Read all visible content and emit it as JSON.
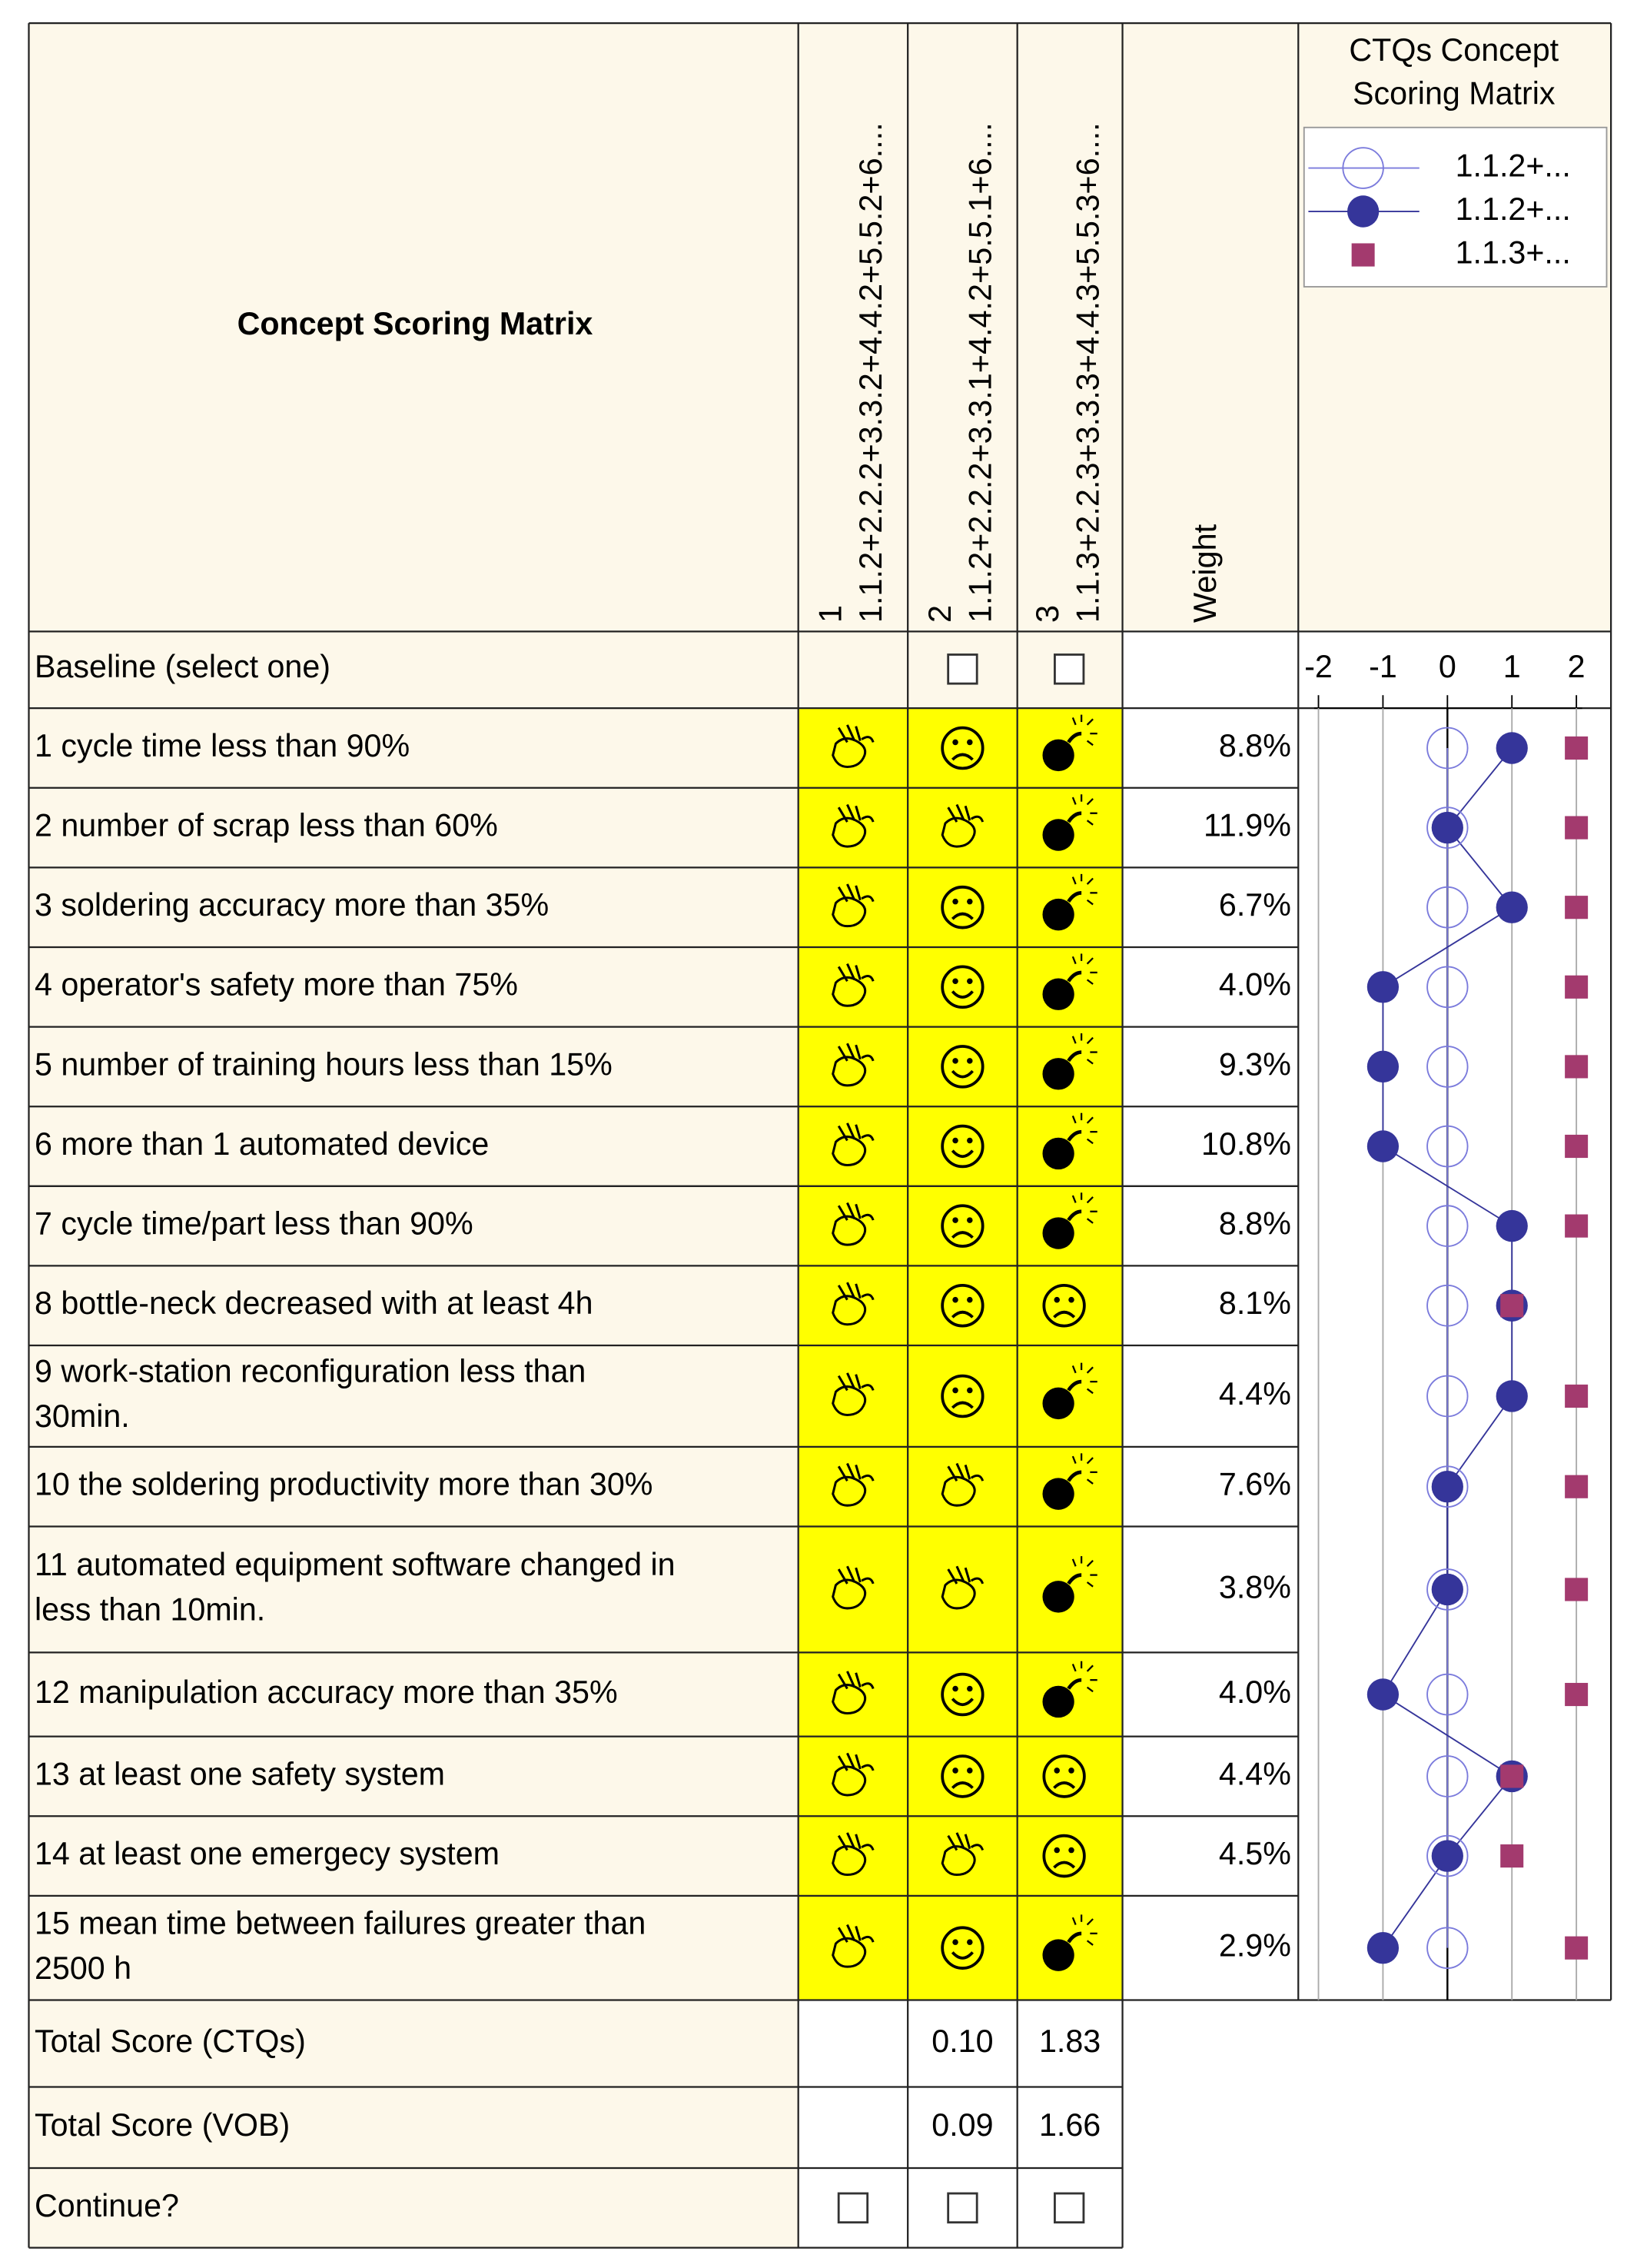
{
  "title": "Concept Scoring Matrix",
  "concepts": [
    {
      "number": "1",
      "name": "1.1.2+2.2.2+3.3.2+4.4.2+5.5.2+6...."
    },
    {
      "number": "2",
      "name": "1.1.2+2.2.2+3.3.1+4.4.2+5.5.1+6...."
    },
    {
      "number": "3",
      "name": "1.1.3+2.2.3+3.3.3+4.4.3+5.5.3+6...."
    }
  ],
  "weight_header": "Weight",
  "baseline_label": "Baseline (select one)",
  "criteria": [
    {
      "lines": [
        "1 cycle time less than 90%"
      ],
      "weight": "8.8%"
    },
    {
      "lines": [
        "2 number of scrap less than 60%"
      ],
      "weight": "11.9%"
    },
    {
      "lines": [
        "3 soldering accuracy more than 35%"
      ],
      "weight": "6.7%"
    },
    {
      "lines": [
        "4 operator's safety more than 75%"
      ],
      "weight": "4.0%"
    },
    {
      "lines": [
        "5 number of training hours less than 15%"
      ],
      "weight": "9.3%"
    },
    {
      "lines": [
        "6 more than 1 automated device"
      ],
      "weight": "10.8%"
    },
    {
      "lines": [
        "7 cycle time/part less than 90%"
      ],
      "weight": "8.8%"
    },
    {
      "lines": [
        "8 bottle-neck decreased with at least 4h"
      ],
      "weight": "8.1%"
    },
    {
      "lines": [
        "9 work-station reconfiguration less than",
        "30min."
      ],
      "weight": "4.4%"
    },
    {
      "lines": [
        "10 the soldering productivity more than 30%"
      ],
      "weight": "7.6%"
    },
    {
      "lines": [
        "11 automated equipment software changed  in",
        "less than 10min."
      ],
      "weight": "3.8%"
    },
    {
      "lines": [
        "12 manipulation accuracy more than 35%"
      ],
      "weight": "4.0%"
    },
    {
      "lines": [
        "13 at least one safety system"
      ],
      "weight": "4.4%"
    },
    {
      "lines": [
        "14 at least one emergecy system"
      ],
      "weight": "4.5%"
    },
    {
      "lines": [
        "15 mean time between failures greater than",
        "2500 h"
      ],
      "weight": "2.9%"
    }
  ],
  "totals": [
    {
      "label": "Total Score (CTQs)",
      "values": [
        "0.10",
        "1.83"
      ]
    },
    {
      "label": "Total Score (VOB)",
      "values": [
        "0.09",
        "1.66"
      ]
    }
  ],
  "continue_label": "Continue?",
  "chart_data": {
    "type": "line",
    "title_lines": [
      "CTQs Concept",
      "Scoring Matrix"
    ],
    "xlim": [
      -2,
      2
    ],
    "xticks": [
      -2,
      -1,
      0,
      1,
      2
    ],
    "grid": true,
    "series": [
      {
        "name": "1.1.2+...",
        "color": "#7b7bdc",
        "marker": "open-circle",
        "line": true,
        "values": [
          0,
          0,
          0,
          0,
          0,
          0,
          0,
          0,
          0,
          0,
          0,
          0,
          0,
          0,
          0
        ]
      },
      {
        "name": "1.1.2+...",
        "color": "#35359a",
        "marker": "circle",
        "line": true,
        "values": [
          1,
          0,
          1,
          -1,
          -1,
          -1,
          1,
          1,
          1,
          0,
          0,
          -1,
          1,
          0,
          -1
        ]
      },
      {
        "name": "1.1.3+...",
        "color": "#a33a6e",
        "marker": "square",
        "line": false,
        "values": [
          2,
          2,
          2,
          2,
          2,
          2,
          2,
          1,
          2,
          2,
          2,
          2,
          1,
          1,
          2
        ]
      }
    ]
  }
}
